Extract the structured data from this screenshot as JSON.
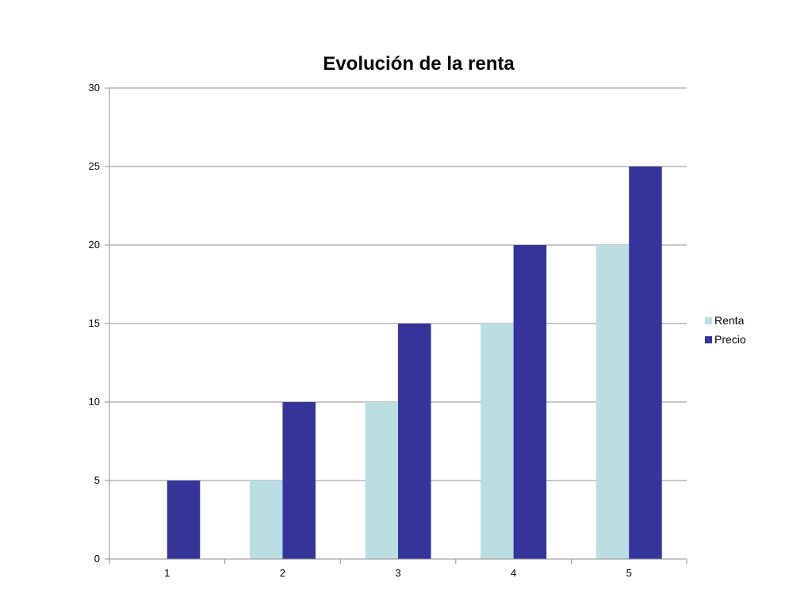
{
  "chart_data": {
    "type": "bar",
    "title": "Evolución de la renta",
    "xlabel": "",
    "ylabel": "",
    "categories": [
      "1",
      "2",
      "3",
      "4",
      "5"
    ],
    "series": [
      {
        "name": "Renta",
        "values": [
          0,
          5,
          10,
          15,
          20
        ],
        "color": "#b9dfe2"
      },
      {
        "name": "Precio",
        "values": [
          5,
          10,
          15,
          20,
          25
        ],
        "color": "#35349a"
      }
    ],
    "ylim": [
      0,
      30
    ],
    "yticks": [
      0,
      5,
      10,
      15,
      20,
      25,
      30
    ],
    "grid": true,
    "legend": "right"
  }
}
